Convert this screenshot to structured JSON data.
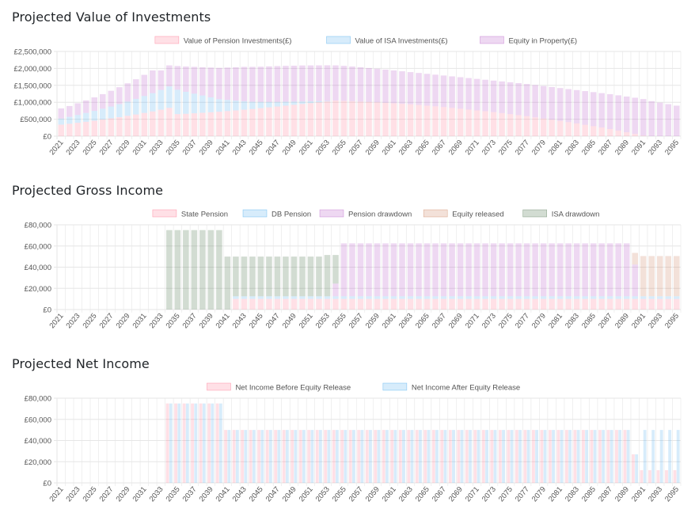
{
  "colors": {
    "pink_fill": "rgba(255,99,132,0.2)",
    "pink_border": "rgba(255,99,132,0.55)",
    "blue_fill": "rgba(54,162,235,0.2)",
    "blue_border": "rgba(54,162,235,0.55)",
    "purple_fill": "rgba(178,78,194,0.22)",
    "purple_border": "rgba(178,78,194,0.5)",
    "brown_fill": "rgba(201,120,80,0.22)",
    "brown_border": "rgba(201,120,80,0.55)",
    "green_fill": "rgba(76,114,76,0.25)",
    "green_border": "rgba(76,114,76,0.55)",
    "grid": "#e6e6e6",
    "tick_text": "#666666"
  },
  "chart_data": [
    {
      "id": "investments",
      "type": "bar",
      "stacked": true,
      "title": "Projected Value of Investments",
      "xlabel": "",
      "ylabel": "",
      "ylim": [
        0,
        2500000
      ],
      "yticks": [
        0,
        500000,
        1000000,
        1500000,
        2000000,
        2500000
      ],
      "ytick_labels": [
        "£0",
        "£500,000",
        "£1,000,000",
        "£1,500,000",
        "£2,000,000",
        "£2,500,000"
      ],
      "x_start": 2021,
      "x_end": 2095,
      "x_tick_step": 2,
      "grid": true,
      "legend": "top-center",
      "series": [
        {
          "name": "Value of Pension Investments(£)",
          "color": "pink",
          "values": [
            340000,
            365000,
            395000,
            425000,
            455000,
            490000,
            525000,
            560000,
            600000,
            640000,
            685000,
            730000,
            780000,
            835000,
            650000,
            660000,
            675000,
            690000,
            705000,
            720000,
            740000,
            760000,
            780000,
            800000,
            825000,
            850000,
            875000,
            900000,
            925000,
            950000,
            975000,
            1000000,
            1025000,
            1050000,
            1040000,
            1030000,
            1020000,
            1010000,
            1000000,
            985000,
            970000,
            955000,
            940000,
            920000,
            900000,
            880000,
            860000,
            835000,
            810000,
            785000,
            760000,
            735000,
            710000,
            680000,
            650000,
            620000,
            590000,
            555000,
            520000,
            485000,
            450000,
            415000,
            375000,
            335000,
            295000,
            255000,
            210000,
            165000,
            115000,
            65000,
            15000,
            0,
            0,
            0,
            0
          ]
        },
        {
          "name": "Value of ISA Investments(£)",
          "color": "blue",
          "values": [
            180000,
            205000,
            230000,
            260000,
            290000,
            320000,
            350000,
            385000,
            420000,
            460000,
            500000,
            540000,
            585000,
            635000,
            720000,
            650000,
            580000,
            510000,
            440000,
            370000,
            330000,
            290000,
            250000,
            215000,
            185000,
            160000,
            135000,
            115000,
            95000,
            75000,
            55000,
            35000,
            15000,
            0,
            0,
            0,
            0,
            0,
            0,
            0,
            0,
            0,
            0,
            0,
            0,
            0,
            0,
            0,
            0,
            0,
            0,
            0,
            0,
            0,
            0,
            0,
            0,
            0,
            0,
            0,
            0,
            0,
            0,
            0,
            0,
            0,
            0,
            0,
            0,
            0,
            0,
            0,
            0,
            0,
            0
          ]
        },
        {
          "name": "Equity in Property(£)",
          "color": "purple",
          "values": [
            300000,
            320000,
            345000,
            370000,
            400000,
            430000,
            465000,
            500000,
            540000,
            580000,
            625000,
            670000,
            575000,
            620000,
            700000,
            745000,
            790000,
            835000,
            880000,
            925000,
            955000,
            985000,
            1015000,
            1030000,
            1040000,
            1050000,
            1058000,
            1060000,
            1060000,
            1062000,
            1058000,
            1055000,
            1052000,
            1040000,
            1035000,
            1025000,
            1015000,
            1000000,
            990000,
            980000,
            970000,
            960000,
            950000,
            945000,
            940000,
            935000,
            930000,
            930000,
            930000,
            930000,
            930000,
            930000,
            930000,
            935000,
            940000,
            945000,
            950000,
            955000,
            960000,
            965000,
            970000,
            975000,
            985000,
            995000,
            1005000,
            1015000,
            1030000,
            1040000,
            1055000,
            1070000,
            1080000,
            1035000,
            990000,
            945000,
            900000
          ]
        }
      ]
    },
    {
      "id": "gross",
      "type": "bar",
      "stacked": true,
      "title": "Projected Gross Income",
      "xlabel": "",
      "ylabel": "",
      "ylim": [
        0,
        80000
      ],
      "yticks": [
        0,
        20000,
        40000,
        60000,
        80000
      ],
      "ytick_labels": [
        "£0",
        "£20,000",
        "£40,000",
        "£60,000",
        "£80,000"
      ],
      "x_start": 2021,
      "x_end": 2095,
      "x_tick_step": 2,
      "grid": true,
      "legend": "top-center",
      "series": [
        {
          "name": "State Pension",
          "color": "pink",
          "values": [
            0,
            0,
            0,
            0,
            0,
            0,
            0,
            0,
            0,
            0,
            0,
            0,
            0,
            0,
            0,
            0,
            0,
            0,
            0,
            0,
            0,
            10000,
            10000,
            10000,
            10000,
            10000,
            10000,
            10000,
            10000,
            10000,
            10000,
            10000,
            10000,
            10000,
            10000,
            10000,
            10000,
            10000,
            10000,
            10000,
            10000,
            10000,
            10000,
            10000,
            10000,
            10000,
            10000,
            10000,
            10000,
            10000,
            10000,
            10000,
            10000,
            10000,
            10000,
            10000,
            10000,
            10000,
            10000,
            10000,
            10000,
            10000,
            10000,
            10000,
            10000,
            10000,
            10000,
            10000,
            10000,
            10000,
            10000,
            10000,
            10000,
            10000,
            10000
          ]
        },
        {
          "name": "DB Pension",
          "color": "blue",
          "values": [
            0,
            0,
            0,
            0,
            0,
            0,
            0,
            0,
            0,
            0,
            0,
            0,
            0,
            0,
            0,
            0,
            0,
            0,
            0,
            0,
            0,
            2500,
            2500,
            2500,
            2500,
            2500,
            2500,
            2500,
            2500,
            2500,
            2500,
            2500,
            2500,
            2500,
            2500,
            2500,
            2500,
            2500,
            2500,
            2500,
            2500,
            2500,
            2500,
            2500,
            2500,
            2500,
            2500,
            2500,
            2500,
            2500,
            2500,
            2500,
            2500,
            2500,
            2500,
            2500,
            2500,
            2500,
            2500,
            2500,
            2500,
            2500,
            2500,
            2500,
            2500,
            2500,
            2500,
            2500,
            2500,
            2500,
            2500,
            2500,
            2500,
            2500,
            2500
          ]
        },
        {
          "name": "Pension drawdown",
          "color": "purple",
          "values": [
            0,
            0,
            0,
            0,
            0,
            0,
            0,
            0,
            0,
            0,
            0,
            0,
            0,
            0,
            0,
            0,
            0,
            0,
            0,
            0,
            0,
            0,
            0,
            0,
            0,
            0,
            0,
            0,
            0,
            0,
            0,
            0,
            0,
            12000,
            50000,
            50000,
            50000,
            50000,
            50000,
            50000,
            50000,
            50000,
            50000,
            50000,
            50000,
            50000,
            50000,
            50000,
            50000,
            50000,
            50000,
            50000,
            50000,
            50000,
            50000,
            50000,
            50000,
            50000,
            50000,
            50000,
            50000,
            50000,
            50000,
            50000,
            50000,
            50000,
            50000,
            50000,
            50000,
            30000,
            0,
            0,
            0,
            0,
            0
          ]
        },
        {
          "name": "Equity released",
          "color": "brown",
          "values": [
            0,
            0,
            0,
            0,
            0,
            0,
            0,
            0,
            0,
            0,
            0,
            0,
            0,
            0,
            0,
            0,
            0,
            0,
            0,
            0,
            0,
            0,
            0,
            0,
            0,
            0,
            0,
            0,
            0,
            0,
            0,
            0,
            0,
            0,
            0,
            0,
            0,
            0,
            0,
            0,
            0,
            0,
            0,
            0,
            0,
            0,
            0,
            0,
            0,
            0,
            0,
            0,
            0,
            0,
            0,
            0,
            0,
            0,
            0,
            0,
            0,
            0,
            0,
            0,
            0,
            0,
            0,
            0,
            0,
            11000,
            38000,
            38000,
            38000,
            38000,
            38000
          ]
        },
        {
          "name": "ISA drawdown",
          "color": "green",
          "values": [
            0,
            0,
            0,
            0,
            0,
            0,
            0,
            0,
            0,
            0,
            0,
            0,
            0,
            75000,
            75000,
            75000,
            75000,
            75000,
            75000,
            75000,
            50000,
            37500,
            37500,
            37500,
            37500,
            37500,
            37500,
            37500,
            37500,
            37500,
            37500,
            37500,
            39000,
            27000,
            0,
            0,
            0,
            0,
            0,
            0,
            0,
            0,
            0,
            0,
            0,
            0,
            0,
            0,
            0,
            0,
            0,
            0,
            0,
            0,
            0,
            0,
            0,
            0,
            0,
            0,
            0,
            0,
            0,
            0,
            0,
            0,
            0,
            0,
            0,
            0,
            0,
            0,
            0,
            0,
            0
          ]
        }
      ]
    },
    {
      "id": "net",
      "type": "bar",
      "stacked": false,
      "title": "Projected Net Income",
      "xlabel": "",
      "ylabel": "",
      "ylim": [
        0,
        80000
      ],
      "yticks": [
        0,
        20000,
        40000,
        60000,
        80000
      ],
      "ytick_labels": [
        "£0",
        "£20,000",
        "£40,000",
        "£60,000",
        "£80,000"
      ],
      "x_start": 2021,
      "x_end": 2095,
      "x_tick_step": 2,
      "grid": true,
      "legend": "top-center",
      "series": [
        {
          "name": "Net Income Before Equity Release",
          "color": "pink",
          "values": [
            0,
            0,
            0,
            0,
            0,
            0,
            0,
            0,
            0,
            0,
            0,
            0,
            0,
            75000,
            75000,
            75000,
            75000,
            75000,
            75000,
            75000,
            50000,
            50000,
            50000,
            50000,
            50000,
            50000,
            50000,
            50000,
            50000,
            50000,
            50000,
            50000,
            50000,
            50000,
            50000,
            50000,
            50000,
            50000,
            50000,
            50000,
            50000,
            50000,
            50000,
            50000,
            50000,
            50000,
            50000,
            50000,
            50000,
            50000,
            50000,
            50000,
            50000,
            50000,
            50000,
            50000,
            50000,
            50000,
            50000,
            50000,
            50000,
            50000,
            50000,
            50000,
            50000,
            50000,
            50000,
            50000,
            50000,
            27000,
            12000,
            12000,
            12000,
            12000,
            12000
          ]
        },
        {
          "name": "Net Income After Equity Release",
          "color": "blue",
          "values": [
            0,
            0,
            0,
            0,
            0,
            0,
            0,
            0,
            0,
            0,
            0,
            0,
            0,
            75000,
            75000,
            75000,
            75000,
            75000,
            75000,
            75000,
            50000,
            50000,
            50000,
            50000,
            50000,
            50000,
            50000,
            50000,
            50000,
            50000,
            50000,
            50000,
            50000,
            50000,
            50000,
            50000,
            50000,
            50000,
            50000,
            50000,
            50000,
            50000,
            50000,
            50000,
            50000,
            50000,
            50000,
            50000,
            50000,
            50000,
            50000,
            50000,
            50000,
            50000,
            50000,
            50000,
            50000,
            50000,
            50000,
            50000,
            50000,
            50000,
            50000,
            50000,
            50000,
            50000,
            50000,
            50000,
            50000,
            27000,
            50000,
            50000,
            50000,
            50000,
            50000
          ]
        }
      ]
    }
  ]
}
